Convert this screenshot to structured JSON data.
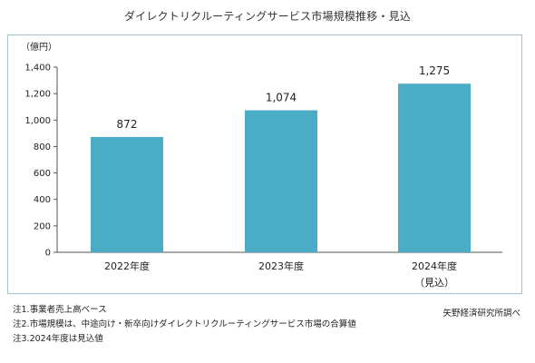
{
  "title": "ダイレクトリクルーティングサービス市場規模推移・見込",
  "notes": [
    "注1.事業者売上高ベース",
    "注2.市場規模は、中途向け・新卒向けダイレクトリクルーティングサービス市場の合算値",
    "注3.2024年度は見込値"
  ],
  "source": "矢野経済研究所調べ",
  "chart_data": {
    "type": "bar",
    "unit_label": "（億円）",
    "categories": [
      "2022年度",
      "2023年度",
      "2024年度"
    ],
    "category_sublabels": [
      "",
      "",
      "（見込）"
    ],
    "values": [
      872,
      1074,
      1275
    ],
    "value_labels": [
      "872",
      "1,074",
      "1,275"
    ],
    "ylim": [
      0,
      1400
    ],
    "yticks": [
      0,
      200,
      400,
      600,
      800,
      1000,
      1200,
      1400
    ],
    "ytick_labels": [
      "0",
      "200",
      "400",
      "600",
      "800",
      "1,000",
      "1,200",
      "1,400"
    ],
    "bar_color": "#4bacc6",
    "grid": false,
    "title": "",
    "xlabel": "",
    "ylabel": ""
  }
}
